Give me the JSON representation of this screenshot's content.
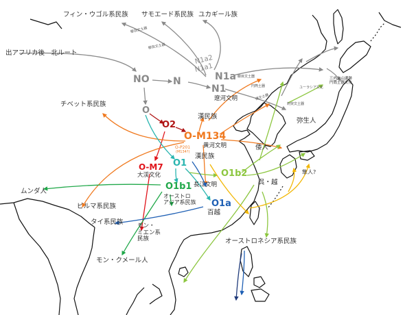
{
  "colors": {
    "gray": "#8a8a8a",
    "dark_red": "#b01515",
    "orange": "#f07a20",
    "red": "#e0141b",
    "teal": "#2ab5b0",
    "green": "#21a84a",
    "yellow_green": "#8cc63f",
    "light_green": "#7ac943",
    "blue": "#1e5fb4",
    "yellow": "#f2b705",
    "navy": "#1f3a7a"
  },
  "ethnic_groups": {
    "finno_ugric": "フィン・ウゴル系民族",
    "samoyed": "サモエード系民族",
    "yukaghir": "ユカギール族",
    "out_of_africa": "出アフリカ後　北ルート",
    "tibetan": "チベット系民族",
    "han_1": "漢民族",
    "han_2": "漢民族",
    "munda": "ムンダ人",
    "burmese": "ビルマ系民族",
    "austroasiatic": "オーストロ\nアジア系民族",
    "tai": "タイ系民族",
    "hmong_mien": "モン・\nミエン系\n民族",
    "mon_khmer": "モン・クメール人",
    "baiyue": "百越",
    "austronesian": "オーストロネシア系民族",
    "wa": "倭人",
    "wu_yue": "呉・越",
    "hayato": "隼人?"
  },
  "cultures": {
    "liao_river": "遼河文明",
    "daxi": "大渓文化",
    "yellow_river": "黄河文明",
    "yangtze": "長江文明",
    "yayoi": "弥生人",
    "sannai": "三内丸山遺跡\n円筒土器文化"
  },
  "small_annotations": {
    "kushi_upper": "櫛目文土器",
    "kushi_mid": "櫛目文土器",
    "kushi_lower": "櫛目文土器",
    "shikonsen": "刺突文土器",
    "taishi": "縄文土器",
    "koshi": "ユーラシア文化",
    "doki_green": "円筒土器",
    "o_p201": "O-P201",
    "o_p201_sub": "(M134?)"
  },
  "haplogroups": {
    "NO": "NO",
    "N": "N",
    "N1a": "N1a",
    "N1": "N1",
    "N1a2": "N1a2",
    "N1a1": "N1a1",
    "O": "O",
    "O2": "O2",
    "O-M134": "O-M134",
    "O-M7": "O-M7",
    "O1": "O1",
    "O1b1": "O1b1",
    "O1b2": "O1b2",
    "O1a": "O1a"
  }
}
